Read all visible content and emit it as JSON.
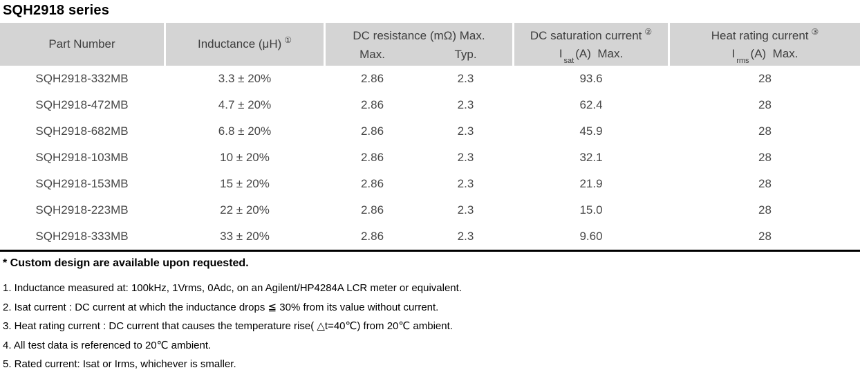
{
  "title": "SQH2918 series",
  "table": {
    "header": {
      "part_number": "Part Number",
      "inductance": "Inductance (μH)",
      "inductance_note": "①",
      "dc_resistance": "DC resistance (mΩ) Max.",
      "dcr_max": "Max.",
      "dcr_typ": "Typ.",
      "dc_saturation": "DC saturation current",
      "dc_saturation_note": "②",
      "isat_symbol": "I",
      "isat_sub": "sat",
      "isat_rest": "(A)  Max.",
      "heat_rating": "Heat rating current",
      "heat_rating_note": "③",
      "irms_symbol": "I",
      "irms_sub": "rms",
      "irms_rest": "(A)  Max."
    },
    "rows": [
      {
        "part_number": "SQH2918-332MB",
        "inductance": "3.3 ± 20%",
        "dcr_max": "2.86",
        "dcr_typ": "2.3",
        "isat": "93.6",
        "irms": "28"
      },
      {
        "part_number": "SQH2918-472MB",
        "inductance": "4.7 ± 20%",
        "dcr_max": "2.86",
        "dcr_typ": "2.3",
        "isat": "62.4",
        "irms": "28"
      },
      {
        "part_number": "SQH2918-682MB",
        "inductance": "6.8 ± 20%",
        "dcr_max": "2.86",
        "dcr_typ": "2.3",
        "isat": "45.9",
        "irms": "28"
      },
      {
        "part_number": "SQH2918-103MB",
        "inductance": "10 ± 20%",
        "dcr_max": "2.86",
        "dcr_typ": "2.3",
        "isat": "32.1",
        "irms": "28"
      },
      {
        "part_number": "SQH2918-153MB",
        "inductance": "15 ± 20%",
        "dcr_max": "2.86",
        "dcr_typ": "2.3",
        "isat": "21.9",
        "irms": "28"
      },
      {
        "part_number": "SQH2918-223MB",
        "inductance": "22 ± 20%",
        "dcr_max": "2.86",
        "dcr_typ": "2.3",
        "isat": "15.0",
        "irms": "28"
      },
      {
        "part_number": "SQH2918-333MB",
        "inductance": "33 ± 20%",
        "dcr_max": "2.86",
        "dcr_typ": "2.3",
        "isat": "9.60",
        "irms": "28"
      }
    ]
  },
  "notes": {
    "custom": "* Custom design are available upon requested.",
    "items": [
      "1. Inductance measured at: 100kHz, 1Vrms, 0Adc, on an Agilent/HP4284A LCR meter or equivalent.",
      "2. Isat current : DC current at which the inductance drops ≦ 30% from its value without current.",
      "3. Heat rating current : DC current that causes the temperature rise( △t=40℃) from 20℃ ambient.",
      "4. All test data is referenced to 20℃ ambient.",
      "5. Rated current: Isat or Irms, whichever is smaller."
    ]
  },
  "colors": {
    "header_bg": "#d4d4d4",
    "header_text": "#3e3e3e",
    "body_text": "#474747",
    "rule": "#000000"
  }
}
